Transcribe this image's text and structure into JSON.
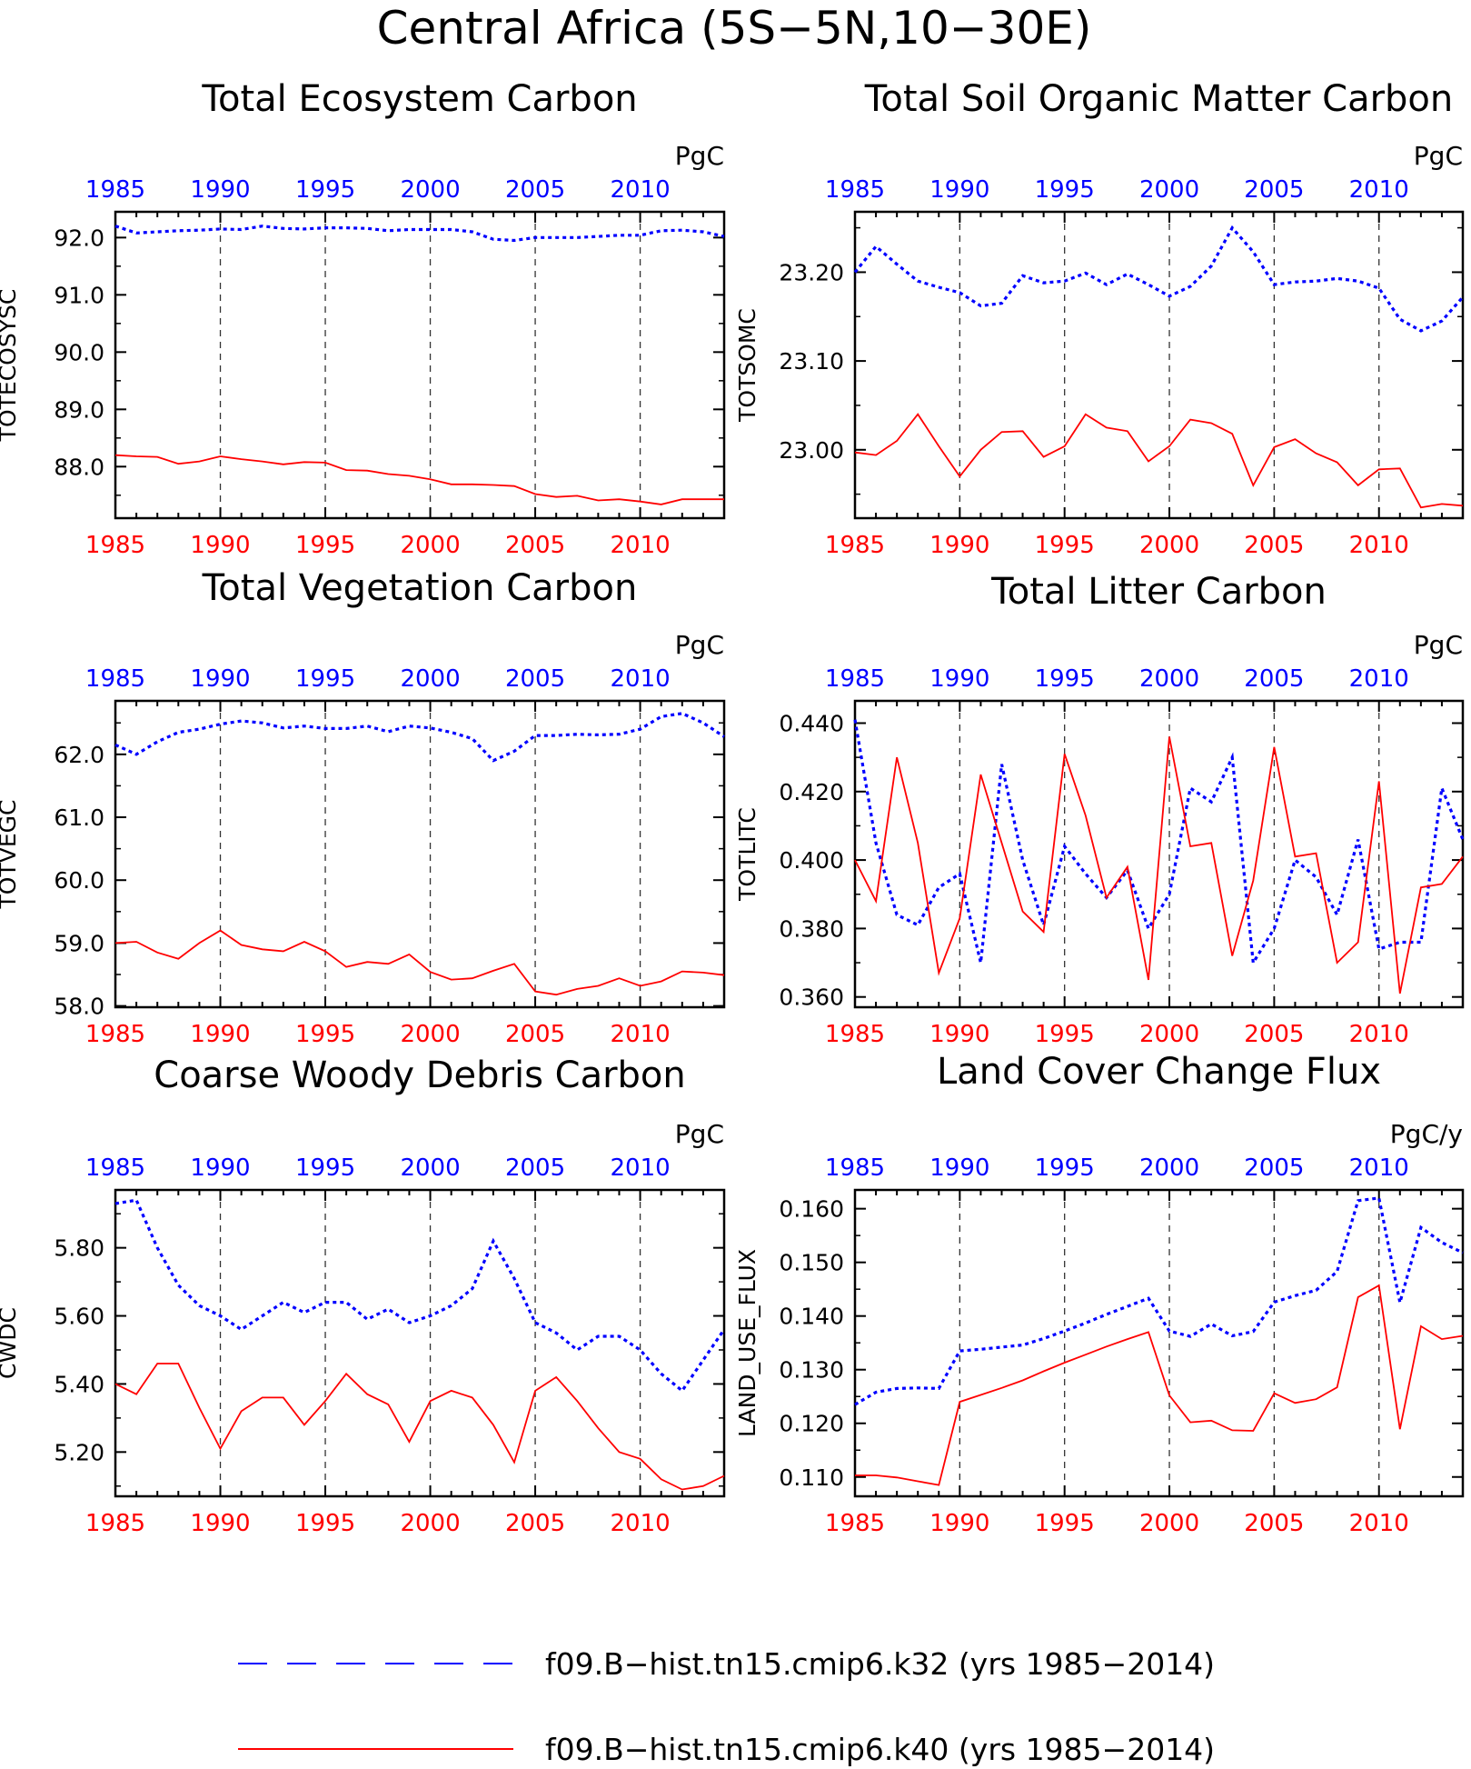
{
  "figure": {
    "title": "Central Africa (5S−5N,10−30E)"
  },
  "colors": {
    "series_a": "#0000ff",
    "series_b": "#ff0000",
    "axis": "#000000"
  },
  "legend": {
    "items": [
      {
        "label": "f09.B−hist.tn15.cmip6.k32 (yrs 1985−2014)",
        "style": "dashed",
        "color": "#0000ff"
      },
      {
        "label": "f09.B−hist.tn15.cmip6.k40 (yrs 1985−2014)",
        "style": "solid",
        "color": "#ff0000"
      }
    ]
  },
  "chart_data": [
    {
      "type": "line",
      "title": "Total Ecosystem Carbon",
      "ylabel": "TOTECOSYSC",
      "units": "PgC",
      "x": [
        1985,
        1986,
        1987,
        1988,
        1989,
        1990,
        1991,
        1992,
        1993,
        1994,
        1995,
        1996,
        1997,
        1998,
        1999,
        2000,
        2001,
        2002,
        2003,
        2004,
        2005,
        2006,
        2007,
        2008,
        2009,
        2010,
        2011,
        2012,
        2013,
        2014
      ],
      "xticks": [
        "1985",
        "1990",
        "1995",
        "2000",
        "2005",
        "2010"
      ],
      "xlim": [
        1985,
        2014
      ],
      "ylim": [
        87.1,
        92.45
      ],
      "yticks": [
        "88.0",
        "89.0",
        "90.0",
        "91.0",
        "92.0"
      ],
      "ytick_values": [
        88.0,
        89.0,
        90.0,
        91.0,
        92.0
      ],
      "series": [
        {
          "name": "f09.B−hist.tn15.cmip6.k32",
          "color": "#0000ff",
          "style": "dotted",
          "values": [
            92.2,
            92.08,
            92.1,
            92.12,
            92.13,
            92.15,
            92.14,
            92.2,
            92.16,
            92.15,
            92.17,
            92.17,
            92.16,
            92.12,
            92.14,
            92.14,
            92.14,
            92.1,
            91.97,
            91.95,
            92.0,
            92.0,
            92.0,
            92.02,
            92.04,
            92.04,
            92.12,
            92.13,
            92.1,
            92.02
          ]
        },
        {
          "name": "f09.B−hist.tn15.cmip6.k40",
          "color": "#ff0000",
          "style": "solid",
          "values": [
            88.2,
            88.18,
            88.17,
            88.05,
            88.09,
            88.18,
            88.13,
            88.09,
            88.04,
            88.08,
            88.07,
            87.94,
            87.93,
            87.87,
            87.84,
            87.78,
            87.69,
            87.69,
            87.68,
            87.66,
            87.52,
            87.47,
            87.49,
            87.41,
            87.43,
            87.39,
            87.34,
            87.43,
            87.43,
            87.43
          ]
        }
      ]
    },
    {
      "type": "line",
      "title": "Total Soil Organic Matter Carbon",
      "ylabel": "TOTSOMC",
      "units": "PgC",
      "x": [
        1985,
        1986,
        1987,
        1988,
        1989,
        1990,
        1991,
        1992,
        1993,
        1994,
        1995,
        1996,
        1997,
        1998,
        1999,
        2000,
        2001,
        2002,
        2003,
        2004,
        2005,
        2006,
        2007,
        2008,
        2009,
        2010,
        2011,
        2012,
        2013,
        2014
      ],
      "xticks": [
        "1985",
        "1990",
        "1995",
        "2000",
        "2005",
        "2010"
      ],
      "xlim": [
        1985,
        2014
      ],
      "ylim": [
        22.923,
        23.268
      ],
      "yticks": [
        "23.00",
        "23.10",
        "23.20"
      ],
      "ytick_values": [
        23.0,
        23.1,
        23.2
      ],
      "series": [
        {
          "name": "f09.B−hist.tn15.cmip6.k32",
          "color": "#0000ff",
          "style": "dotted",
          "values": [
            23.2,
            23.229,
            23.209,
            23.19,
            23.183,
            23.177,
            23.162,
            23.165,
            23.196,
            23.188,
            23.19,
            23.199,
            23.186,
            23.198,
            23.186,
            23.173,
            23.184,
            23.207,
            23.25,
            23.223,
            23.186,
            23.189,
            23.19,
            23.193,
            23.19,
            23.182,
            23.147,
            23.134,
            23.145,
            23.172
          ]
        },
        {
          "name": "f09.B−hist.tn15.cmip6.k40",
          "color": "#ff0000",
          "style": "solid",
          "values": [
            22.997,
            22.994,
            23.01,
            23.04,
            23.004,
            22.97,
            23.0,
            23.02,
            23.021,
            22.992,
            23.004,
            23.04,
            23.025,
            23.021,
            22.987,
            23.004,
            23.034,
            23.03,
            23.018,
            22.96,
            23.003,
            23.012,
            22.996,
            22.986,
            22.96,
            22.978,
            22.979,
            22.935,
            22.939,
            22.937
          ]
        }
      ]
    },
    {
      "type": "line",
      "title": "Total Vegetation Carbon",
      "ylabel": "TOTVEGC",
      "units": "PgC",
      "x": [
        1985,
        1986,
        1987,
        1988,
        1989,
        1990,
        1991,
        1992,
        1993,
        1994,
        1995,
        1996,
        1997,
        1998,
        1999,
        2000,
        2001,
        2002,
        2003,
        2004,
        2005,
        2006,
        2007,
        2008,
        2009,
        2010,
        2011,
        2012,
        2013,
        2014
      ],
      "xticks": [
        "1985",
        "1990",
        "1995",
        "2000",
        "2005",
        "2010"
      ],
      "xlim": [
        1985,
        2014
      ],
      "ylim": [
        57.98,
        62.85
      ],
      "yticks": [
        "58.0",
        "59.0",
        "60.0",
        "61.0",
        "62.0"
      ],
      "ytick_values": [
        58.0,
        59.0,
        60.0,
        61.0,
        62.0
      ],
      "series": [
        {
          "name": "f09.B−hist.tn15.cmip6.k32",
          "color": "#0000ff",
          "style": "dotted",
          "values": [
            62.15,
            62.0,
            62.2,
            62.35,
            62.4,
            62.48,
            62.53,
            62.5,
            62.42,
            62.45,
            62.41,
            62.41,
            62.45,
            62.36,
            62.45,
            62.42,
            62.35,
            62.25,
            61.9,
            62.05,
            62.3,
            62.3,
            62.32,
            62.31,
            62.32,
            62.4,
            62.6,
            62.65,
            62.5,
            62.28
          ]
        },
        {
          "name": "f09.B−hist.tn15.cmip6.k40",
          "color": "#ff0000",
          "style": "solid",
          "values": [
            59.0,
            59.02,
            58.85,
            58.75,
            59.0,
            59.2,
            58.97,
            58.9,
            58.87,
            59.02,
            58.87,
            58.62,
            58.7,
            58.67,
            58.82,
            58.54,
            58.42,
            58.44,
            58.56,
            58.67,
            58.23,
            58.18,
            58.27,
            58.32,
            58.44,
            58.32,
            58.39,
            58.55,
            58.53,
            58.49
          ]
        }
      ]
    },
    {
      "type": "line",
      "title": "Total Litter Carbon",
      "ylabel": "TOTLITC",
      "units": "PgC",
      "x": [
        1985,
        1986,
        1987,
        1988,
        1989,
        1990,
        1991,
        1992,
        1993,
        1994,
        1995,
        1996,
        1997,
        1998,
        1999,
        2000,
        2001,
        2002,
        2003,
        2004,
        2005,
        2006,
        2007,
        2008,
        2009,
        2010,
        2011,
        2012,
        2013,
        2014
      ],
      "xticks": [
        "1985",
        "1990",
        "1995",
        "2000",
        "2005",
        "2010"
      ],
      "xlim": [
        1985,
        2014
      ],
      "ylim": [
        0.357,
        0.4465
      ],
      "yticks": [
        "0.360",
        "0.380",
        "0.400",
        "0.420",
        "0.440"
      ],
      "ytick_values": [
        0.36,
        0.38,
        0.4,
        0.42,
        0.44
      ],
      "series": [
        {
          "name": "f09.B−hist.tn15.cmip6.k32",
          "color": "#0000ff",
          "style": "dotted",
          "values": [
            0.441,
            0.405,
            0.384,
            0.381,
            0.392,
            0.396,
            0.37,
            0.428,
            0.4,
            0.381,
            0.404,
            0.396,
            0.389,
            0.397,
            0.38,
            0.39,
            0.421,
            0.417,
            0.43,
            0.37,
            0.38,
            0.4,
            0.395,
            0.384,
            0.406,
            0.374,
            0.376,
            0.376,
            0.421,
            0.406
          ]
        },
        {
          "name": "f09.B−hist.tn15.cmip6.k40",
          "color": "#ff0000",
          "style": "solid",
          "values": [
            0.4,
            0.388,
            0.43,
            0.405,
            0.367,
            0.383,
            0.425,
            0.405,
            0.385,
            0.379,
            0.431,
            0.413,
            0.389,
            0.398,
            0.365,
            0.436,
            0.404,
            0.405,
            0.372,
            0.394,
            0.433,
            0.401,
            0.402,
            0.37,
            0.376,
            0.423,
            0.361,
            0.392,
            0.393,
            0.401
          ]
        }
      ]
    },
    {
      "type": "line",
      "title": "Coarse Woody Debris Carbon",
      "ylabel": "CWDC",
      "units": "PgC",
      "x": [
        1985,
        1986,
        1987,
        1988,
        1989,
        1990,
        1991,
        1992,
        1993,
        1994,
        1995,
        1996,
        1997,
        1998,
        1999,
        2000,
        2001,
        2002,
        2003,
        2004,
        2005,
        2006,
        2007,
        2008,
        2009,
        2010,
        2011,
        2012,
        2013,
        2014
      ],
      "xticks": [
        "1985",
        "1990",
        "1995",
        "2000",
        "2005",
        "2010"
      ],
      "xlim": [
        1985,
        2014
      ],
      "ylim": [
        5.07,
        5.97
      ],
      "yticks": [
        "5.20",
        "5.40",
        "5.60",
        "5.80"
      ],
      "ytick_values": [
        5.2,
        5.4,
        5.6,
        5.8
      ],
      "series": [
        {
          "name": "f09.B−hist.tn15.cmip6.k32",
          "color": "#0000ff",
          "style": "dotted",
          "values": [
            5.93,
            5.94,
            5.8,
            5.69,
            5.63,
            5.6,
            5.56,
            5.6,
            5.64,
            5.61,
            5.64,
            5.64,
            5.59,
            5.62,
            5.58,
            5.6,
            5.63,
            5.68,
            5.82,
            5.71,
            5.58,
            5.55,
            5.5,
            5.54,
            5.54,
            5.5,
            5.43,
            5.38,
            5.47,
            5.56
          ]
        },
        {
          "name": "f09.B−hist.tn15.cmip6.k40",
          "color": "#ff0000",
          "style": "solid",
          "values": [
            5.4,
            5.37,
            5.46,
            5.46,
            5.33,
            5.21,
            5.32,
            5.36,
            5.36,
            5.28,
            5.35,
            5.43,
            5.37,
            5.34,
            5.23,
            5.35,
            5.38,
            5.36,
            5.28,
            5.17,
            5.38,
            5.42,
            5.35,
            5.27,
            5.2,
            5.18,
            5.12,
            5.09,
            5.1,
            5.13
          ]
        }
      ]
    },
    {
      "type": "line",
      "title": "Land Cover Change Flux",
      "ylabel": "LAND_USE_FLUX",
      "units": "PgC/y",
      "x": [
        1985,
        1986,
        1987,
        1988,
        1989,
        1990,
        1991,
        1992,
        1993,
        1994,
        1995,
        1996,
        1997,
        1998,
        1999,
        2000,
        2001,
        2002,
        2003,
        2004,
        2005,
        2006,
        2007,
        2008,
        2009,
        2010,
        2011,
        2012,
        2013,
        2014
      ],
      "xticks": [
        "1985",
        "1990",
        "1995",
        "2000",
        "2005",
        "2010"
      ],
      "xlim": [
        1985,
        2014
      ],
      "ylim": [
        0.1064,
        0.1635
      ],
      "yticks": [
        "0.110",
        "0.120",
        "0.130",
        "0.140",
        "0.150",
        "0.160"
      ],
      "ytick_values": [
        0.11,
        0.12,
        0.13,
        0.14,
        0.15,
        0.16
      ],
      "series": [
        {
          "name": "f09.B−hist.tn15.cmip6.k32",
          "color": "#0000ff",
          "style": "dotted",
          "values": [
            0.1235,
            0.1258,
            0.1265,
            0.1266,
            0.1265,
            0.1335,
            0.1338,
            0.1342,
            0.1346,
            0.1358,
            0.1372,
            0.1387,
            0.1403,
            0.1418,
            0.1433,
            0.1372,
            0.1362,
            0.1385,
            0.1363,
            0.1371,
            0.1426,
            0.1438,
            0.1448,
            0.1483,
            0.1615,
            0.162,
            0.1425,
            0.1565,
            0.1537,
            0.1518
          ]
        },
        {
          "name": "f09.B−hist.tn15.cmip6.k40",
          "color": "#ff0000",
          "style": "solid",
          "values": [
            0.1103,
            0.1103,
            0.1099,
            0.1092,
            0.1085,
            0.124,
            0.1253,
            0.1266,
            0.128,
            0.1297,
            0.1313,
            0.1328,
            0.1343,
            0.1357,
            0.137,
            0.1252,
            0.1202,
            0.1205,
            0.1187,
            0.1186,
            0.1256,
            0.1238,
            0.1245,
            0.1267,
            0.1435,
            0.1457,
            0.1189,
            0.1381,
            0.1357,
            0.1363
          ]
        }
      ]
    }
  ]
}
